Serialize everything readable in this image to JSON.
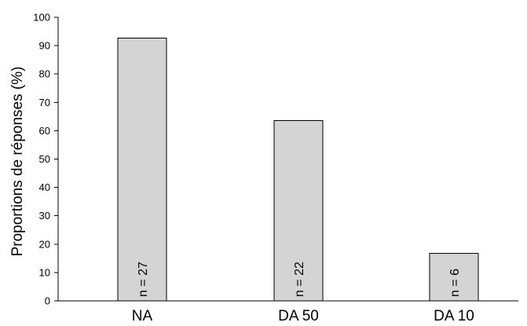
{
  "chart_data": {
    "type": "bar",
    "categories": [
      "NA",
      "DA 50",
      "DA 10"
    ],
    "values": [
      92.6,
      63.6,
      16.7
    ],
    "annotations": [
      "n = 27",
      "n = 22",
      "n = 6"
    ],
    "title": "",
    "xlabel": "",
    "ylabel": "Proportions de réponses (%)",
    "ylim": [
      0,
      100
    ],
    "yticks": [
      "0",
      "10",
      "20",
      "30",
      "40",
      "50",
      "60",
      "70",
      "80",
      "90",
      "100"
    ],
    "bar_color": "#d4d4d4",
    "grid": false,
    "legend": "none"
  }
}
